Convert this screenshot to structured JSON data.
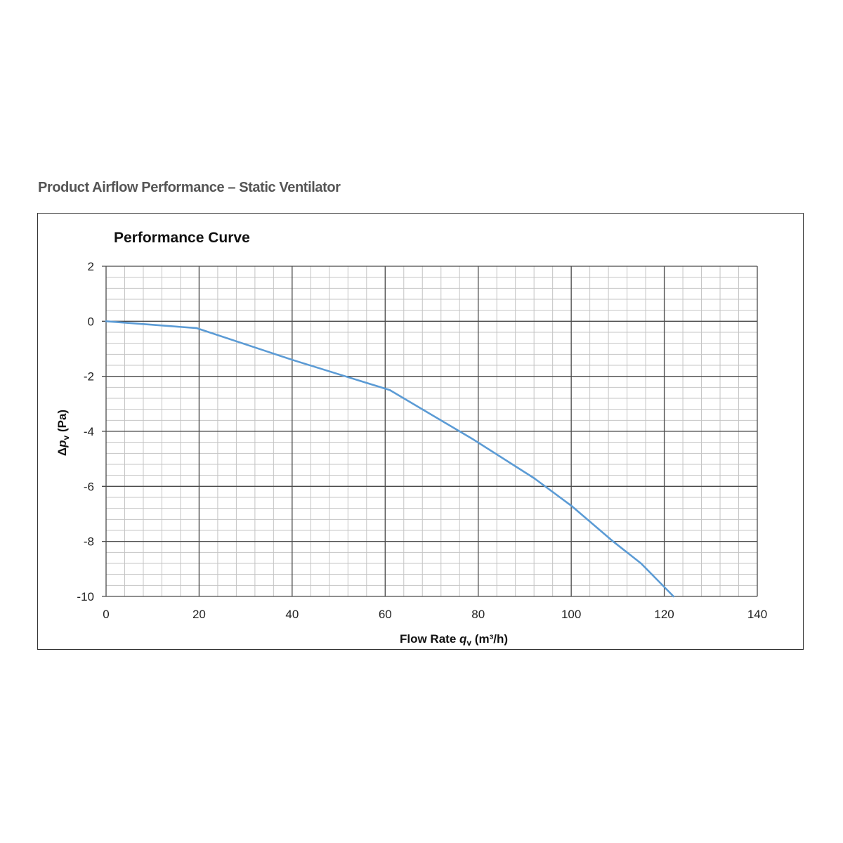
{
  "heading": "Product Airflow Performance – Static Ventilator",
  "chart_data": {
    "type": "line",
    "title": "Performance Curve",
    "xlabel": {
      "prefix": "Flow Rate ",
      "symbol": "q",
      "subscript": "v",
      "suffix": " (m³/h)"
    },
    "ylabel": {
      "prefix": "Δ",
      "symbol": "p",
      "subscript": "v",
      "suffix": " (Pa)"
    },
    "xlim": [
      0,
      140
    ],
    "ylim": [
      -10,
      2
    ],
    "x_ticks": [
      0,
      20,
      40,
      60,
      80,
      100,
      120,
      140
    ],
    "y_ticks": [
      2,
      0,
      -2,
      -4,
      -6,
      -8,
      -10
    ],
    "x_minor_step": 4,
    "y_minor_step": 0.4,
    "grid": true,
    "series": [
      {
        "color": "#5b9bd5",
        "x": [
          0,
          19.5,
          40,
          61,
          79,
          92,
          100,
          109,
          115,
          122
        ],
        "y": [
          0,
          -0.25,
          -1.4,
          -2.5,
          -4.3,
          -5.7,
          -6.7,
          -8.0,
          -8.8,
          -10.0
        ]
      }
    ]
  }
}
